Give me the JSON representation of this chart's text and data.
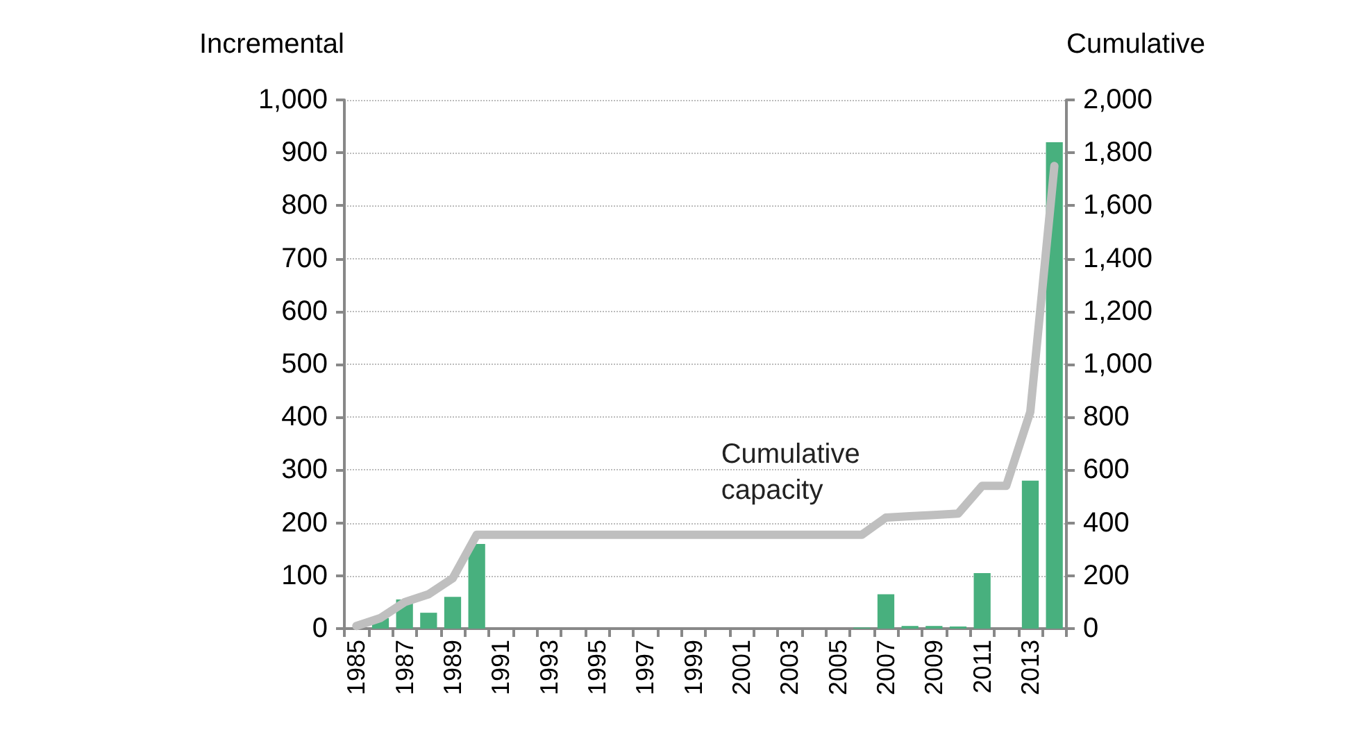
{
  "chart_data": {
    "type": "bar",
    "ylabel": "Incremental",
    "y2label": "Cumulative",
    "categories": [
      "1985",
      null,
      "1987",
      null,
      "1989",
      null,
      "1991",
      null,
      "1993",
      null,
      "1995",
      null,
      "1997",
      null,
      "1999",
      null,
      "2001",
      null,
      "2003",
      null,
      "2005",
      null,
      "2007",
      null,
      "2009",
      null,
      "2011",
      null,
      "2013",
      null
    ],
    "series": [
      {
        "color": "#48b07e",
        "values": [
          null,
          20,
          55,
          30,
          60,
          160,
          0,
          0,
          0,
          0,
          0,
          0,
          0,
          0,
          0,
          0,
          0,
          0,
          0,
          0,
          0,
          2,
          65,
          5,
          5,
          4,
          105,
          0,
          280,
          920
        ]
      },
      {
        "type": "line",
        "name": "Cumulative capacity",
        "axis": "y2",
        "color": "#bfbfbf",
        "values": [
          10,
          40,
          100,
          130,
          190,
          355,
          355,
          355,
          355,
          355,
          355,
          355,
          355,
          355,
          355,
          355,
          355,
          355,
          355,
          355,
          355,
          355,
          420,
          425,
          430,
          435,
          540,
          540,
          820,
          1750
        ]
      }
    ],
    "ylim": [
      0,
      1000
    ],
    "yticks": [
      0,
      100,
      200,
      300,
      400,
      500,
      600,
      700,
      800,
      900,
      {
        "value": 1000,
        "label": "1,000"
      }
    ],
    "y2lim": [
      0,
      2000
    ],
    "y2ticks": [
      0,
      200,
      400,
      600,
      800,
      {
        "value": 1000,
        "label": "1,000"
      },
      {
        "value": 1200,
        "label": "1,200"
      },
      {
        "value": 1400,
        "label": "1,400"
      },
      {
        "value": 1600,
        "label": "1,600"
      },
      {
        "value": 1800,
        "label": "1,800"
      },
      {
        "value": 2000,
        "label": "2,000"
      }
    ],
    "grid": "y",
    "legend": false,
    "marker": "none"
  }
}
